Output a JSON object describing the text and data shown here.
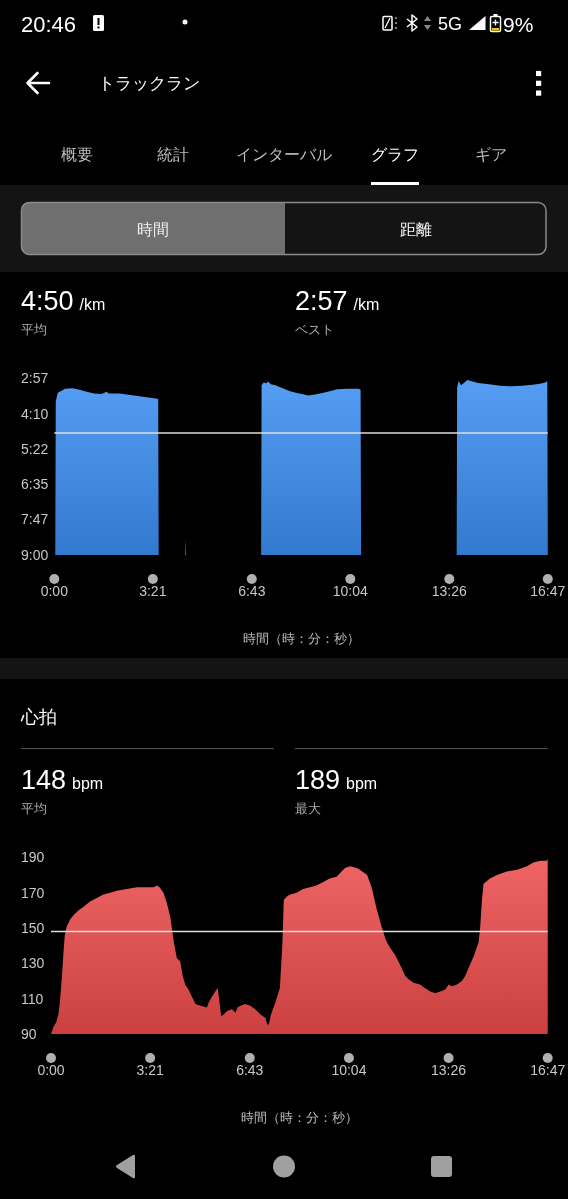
{
  "chart_data": [
    {
      "type": "other",
      "annotations": [
        "20:46",
        "5G",
        "9%",
        "トラックラン",
        "概要",
        "統計",
        "インターバル",
        "グラフ",
        "ギア",
        "時間",
        "距離"
      ]
    },
    {
      "type": "area",
      "annotations": [
        "4:50",
        "/km",
        "平均",
        "2:57",
        "/km",
        "ベスト"
      ],
      "xlabel": "時間（時：分：秒）",
      "series": [
        {
          "x": [
            2,
            3,
            7,
            15,
            22,
            37,
            52,
            66,
            81,
            96,
            107,
            111,
            133,
            155,
            185,
            207,
            212,
            213
          ],
          "values": [
            540,
            225,
            207,
            203,
            199,
            198,
            201,
            205,
            209,
            210,
            205,
            209,
            209,
            212,
            216,
            219,
            220,
            540
          ]
        },
        {
          "x": [
            267,
            268,
            269
          ],
          "values": [
            540,
            507,
            540
          ]
        },
        {
          "x": [
            422,
            423,
            427,
            433,
            436,
            442,
            451,
            466,
            481,
            495,
            510,
            518,
            532,
            547,
            562,
            577,
            599,
            621,
            625,
            626
          ],
          "values": [
            540,
            192,
            186,
            188,
            184,
            190,
            192,
            198,
            204,
            208,
            211,
            213,
            211,
            208,
            204,
            200,
            199,
            199,
            201,
            540
          ]
        },
        {
          "x": [
            821,
            822,
            825,
            830,
            837,
            843,
            850,
            865,
            887,
            910,
            932,
            954,
            976,
            991,
            1002,
            1006,
            1007
          ],
          "values": [
            540,
            196,
            183,
            192,
            186,
            181,
            183,
            187,
            190,
            193,
            194,
            193,
            191,
            189,
            186,
            183,
            540
          ]
        }
      ],
      "color": "#3a8df2",
      "xlim": [
        0,
        1007
      ],
      "ylim": [
        540,
        177
      ],
      "xticks": [
        {
          "value": 0,
          "label": "0:00"
        },
        {
          "value": 201,
          "label": "3:21"
        },
        {
          "value": 403,
          "label": "6:43"
        },
        {
          "value": 604,
          "label": "10:04"
        },
        {
          "value": 806,
          "label": "13:26"
        },
        {
          "value": 1007,
          "label": "16:47"
        }
      ],
      "yticks": [
        {
          "value": 177,
          "label": "2:57"
        },
        {
          "value": 250,
          "label": "4:10"
        },
        {
          "value": 322,
          "label": "5:22"
        },
        {
          "value": 395,
          "label": "6:35"
        },
        {
          "value": 467,
          "label": "7:47"
        },
        {
          "value": 540,
          "label": "9:00"
        }
      ],
      "ref_lines": [
        {
          "axis": "y",
          "value": 290,
          "color": "#dddddd"
        }
      ]
    },
    {
      "type": "area",
      "title": "心拍",
      "annotations": [
        "148",
        "bpm",
        "平均",
        "189",
        "bpm",
        "最大"
      ],
      "xlabel": "時間（時：分：秒）",
      "x": [
        0,
        5,
        11,
        15,
        18,
        22,
        25,
        28,
        32,
        39,
        45,
        56,
        66,
        79,
        93,
        106,
        120,
        133,
        154,
        174,
        194,
        208,
        215,
        220,
        228,
        235,
        242,
        249,
        255,
        262,
        267,
        272,
        279,
        286,
        293,
        303,
        316,
        320,
        326,
        333,
        338,
        342,
        345,
        350,
        357,
        367,
        374,
        378,
        384,
        394,
        404,
        414,
        425,
        435,
        438,
        441,
        446,
        455,
        464,
        469,
        472,
        479,
        485,
        498,
        511,
        525,
        538,
        552,
        565,
        579,
        589,
        596,
        606,
        620,
        626,
        641,
        650,
        660,
        670,
        679,
        687,
        697,
        708,
        718,
        725,
        735,
        748,
        758,
        769,
        779,
        789,
        799,
        806,
        813,
        823,
        833,
        840,
        846,
        857,
        867,
        870,
        874,
        877,
        890,
        904,
        924,
        945,
        965,
        978,
        992,
        1005,
        1007
      ],
      "values": [
        90,
        94,
        97,
        101,
        108,
        122,
        135,
        146,
        151,
        155,
        157,
        160,
        162,
        165,
        167,
        169,
        170,
        171,
        172,
        173,
        173,
        173,
        174,
        173,
        170,
        164,
        156,
        142,
        133,
        131,
        123,
        118,
        115,
        111,
        107,
        106,
        105,
        108,
        111,
        114,
        116,
        107,
        100,
        101,
        103,
        104,
        102,
        105,
        106,
        107,
        106,
        104,
        101,
        99,
        96,
        95,
        101,
        108,
        116,
        140,
        166,
        168,
        169,
        170,
        172,
        173,
        174,
        176,
        178,
        179,
        182,
        184,
        185,
        184,
        183,
        180,
        173,
        161,
        151,
        143,
        139,
        135,
        129,
        123,
        121,
        119,
        118,
        116,
        114,
        113,
        114,
        115,
        118,
        117,
        118,
        120,
        123,
        127,
        134,
        142,
        150,
        167,
        175,
        178,
        180,
        182,
        183,
        185,
        187,
        188,
        188,
        189
      ],
      "color": "#ec4b4b",
      "xlim": [
        0,
        1007
      ],
      "ylim": [
        90,
        190
      ],
      "xticks": [
        {
          "value": 0,
          "label": "0:00"
        },
        {
          "value": 201,
          "label": "3:21"
        },
        {
          "value": 403,
          "label": "6:43"
        },
        {
          "value": 604,
          "label": "10:04"
        },
        {
          "value": 806,
          "label": "13:26"
        },
        {
          "value": 1007,
          "label": "16:47"
        }
      ],
      "yticks": [
        90,
        110,
        130,
        150,
        170,
        190
      ],
      "ref_lines": [
        {
          "axis": "y",
          "value": 148,
          "color": "#dddddd"
        }
      ]
    }
  ]
}
